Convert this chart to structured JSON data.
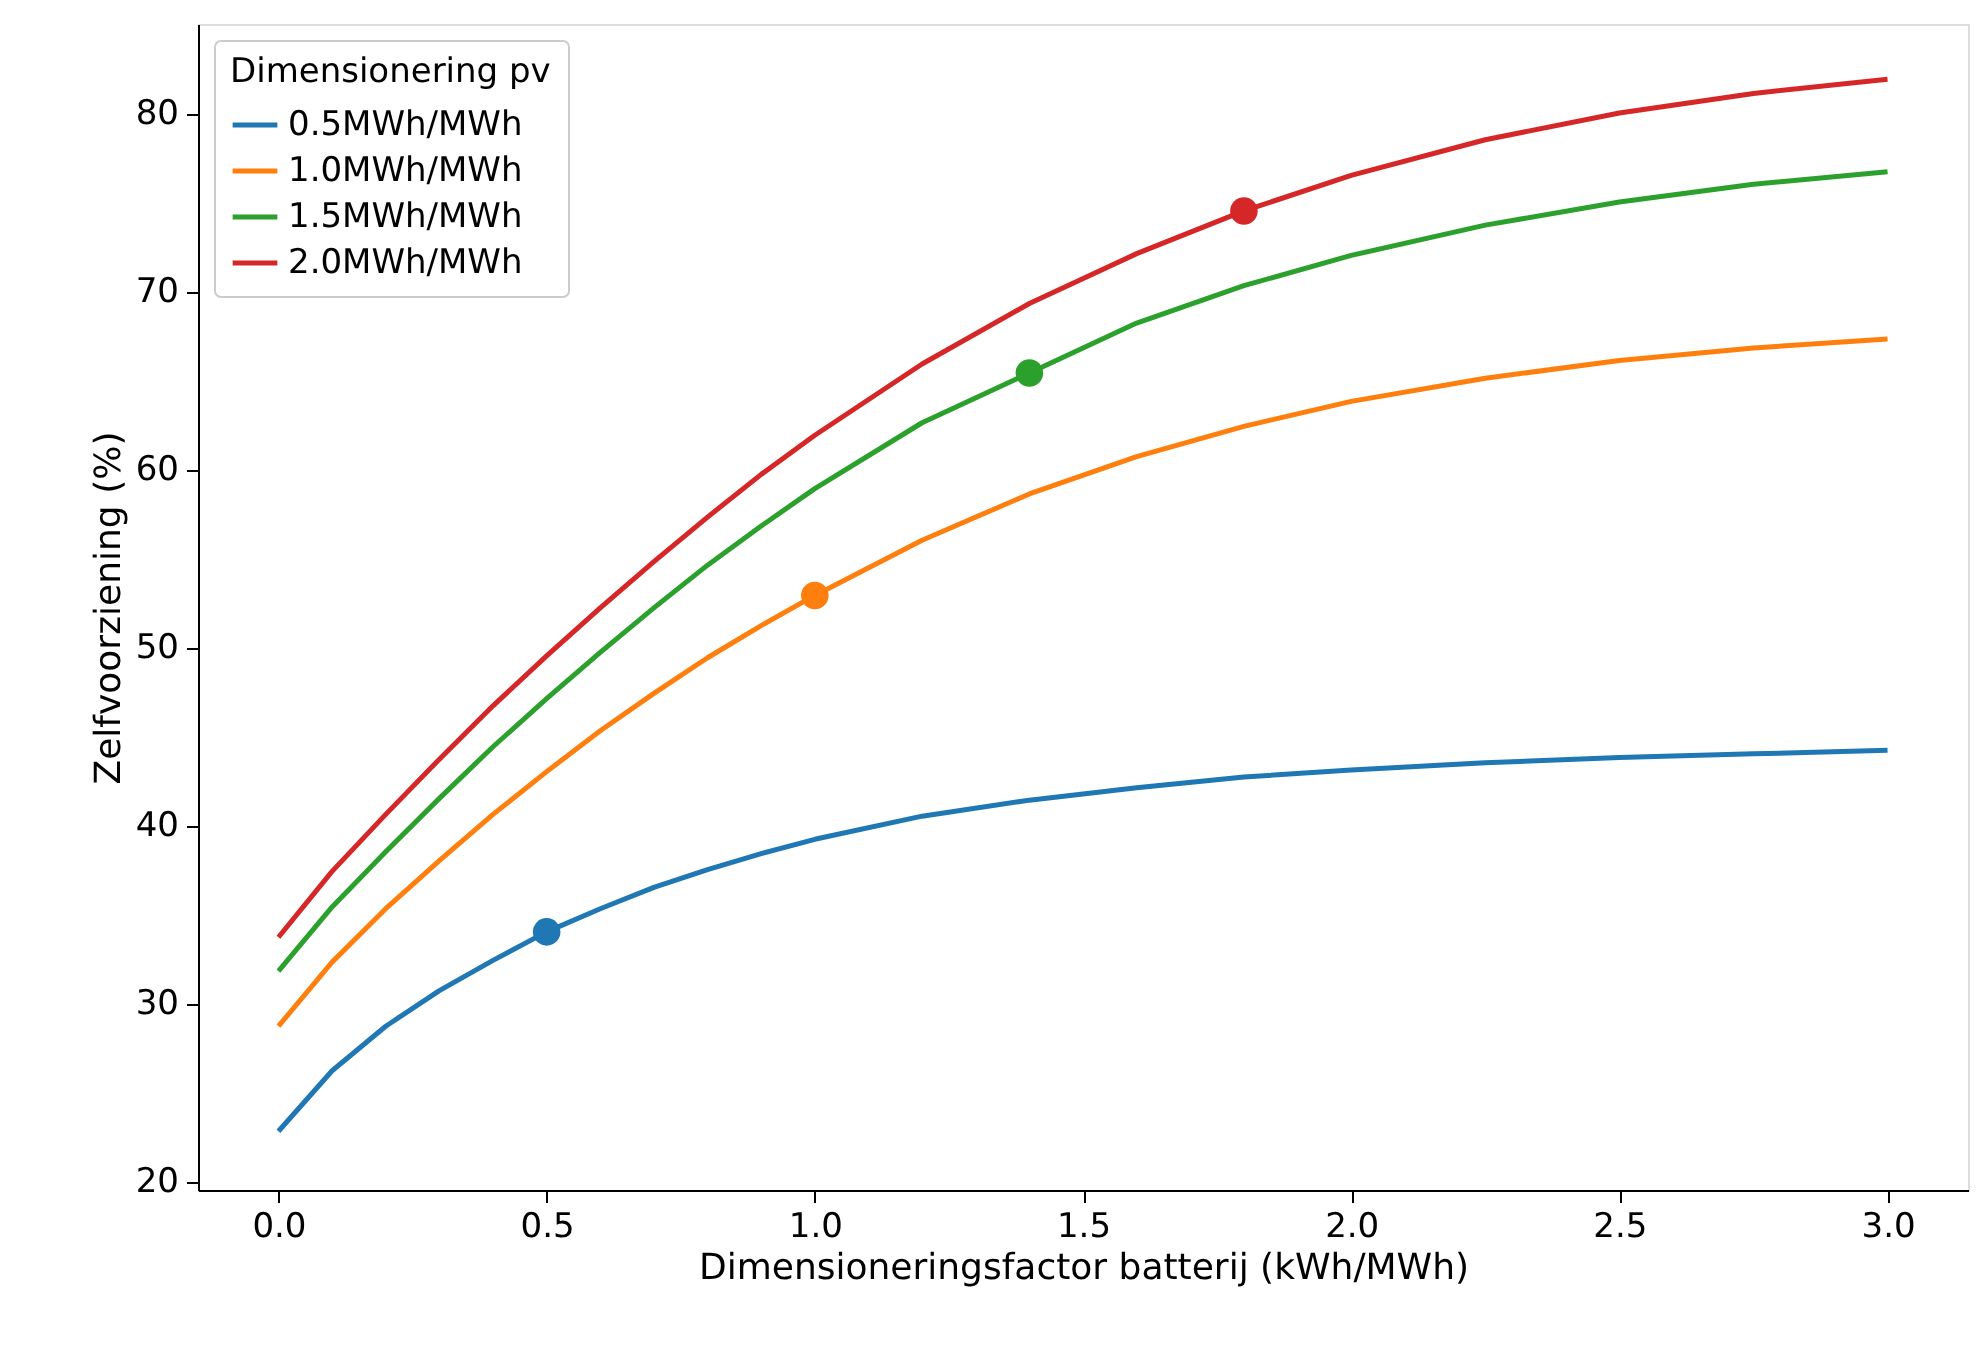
{
  "chart_data": {
    "type": "line",
    "xlabel": "Dimensioneringsfactor batterij (kWh/MWh)",
    "ylabel": "Zelfvoorziening (%)",
    "legend_title": "Dimensionering pv",
    "legend": "top left",
    "grid": false,
    "marker": "none",
    "line_style": "solid",
    "x": [
      0.0,
      0.1,
      0.2,
      0.3,
      0.4,
      0.5,
      0.6,
      0.7,
      0.8,
      0.9,
      1.0,
      1.2,
      1.4,
      1.6,
      1.8,
      2.0,
      2.25,
      2.5,
      2.75,
      3.0
    ],
    "xlim": [
      -0.15,
      3.15
    ],
    "ylim": [
      19.5,
      85
    ],
    "xticks": [
      {
        "value": 0,
        "label": "0.0"
      },
      0.5,
      {
        "value": 1,
        "label": "1.0"
      },
      1.5,
      {
        "value": 2,
        "label": "2.0"
      },
      2.5,
      {
        "value": 3,
        "label": "3.0"
      }
    ],
    "yticks": [
      20,
      30,
      40,
      50,
      60,
      70,
      80
    ],
    "series": [
      {
        "name": "0.5MWh/MWh",
        "color": "#1f77b4",
        "values": [
          22.8,
          26.2,
          28.7,
          30.7,
          32.4,
          34.0,
          35.3,
          36.5,
          37.5,
          38.4,
          39.2,
          40.5,
          41.4,
          42.1,
          42.7,
          43.1,
          43.5,
          43.8,
          44.0,
          44.2
        ]
      },
      {
        "name": "1.0MWh/MWh",
        "color": "#ff7f0e",
        "values": [
          28.7,
          32.3,
          35.3,
          38.0,
          40.6,
          43.0,
          45.3,
          47.4,
          49.4,
          51.2,
          52.9,
          56.0,
          58.6,
          60.7,
          62.4,
          63.8,
          65.1,
          66.1,
          66.8,
          67.3
        ]
      },
      {
        "name": "1.5MWh/MWh",
        "color": "#2ca02c",
        "values": [
          31.8,
          35.4,
          38.5,
          41.5,
          44.4,
          47.1,
          49.7,
          52.2,
          54.6,
          56.8,
          58.9,
          62.6,
          65.4,
          68.2,
          70.3,
          72.0,
          73.7,
          75.0,
          76.0,
          76.7
        ]
      },
      {
        "name": "2.0MWh/MWh",
        "color": "#d62728",
        "values": [
          33.7,
          37.4,
          40.6,
          43.7,
          46.7,
          49.5,
          52.2,
          54.8,
          57.3,
          59.7,
          61.9,
          65.9,
          69.3,
          72.1,
          74.5,
          76.5,
          78.5,
          80.0,
          81.1,
          81.9
        ]
      },
      {
        "type": "scatter",
        "marker": "circle",
        "color": "#1f77b4",
        "x": [
          0.5
        ],
        "values": [
          34.0
        ]
      },
      {
        "type": "scatter",
        "marker": "circle",
        "color": "#ff7f0e",
        "x": [
          1.0
        ],
        "values": [
          52.9
        ]
      },
      {
        "type": "scatter",
        "marker": "circle",
        "color": "#2ca02c",
        "x": [
          1.4
        ],
        "values": [
          65.4
        ]
      },
      {
        "type": "scatter",
        "marker": "circle",
        "color": "#d62728",
        "x": [
          1.8
        ],
        "values": [
          74.5
        ]
      }
    ]
  }
}
